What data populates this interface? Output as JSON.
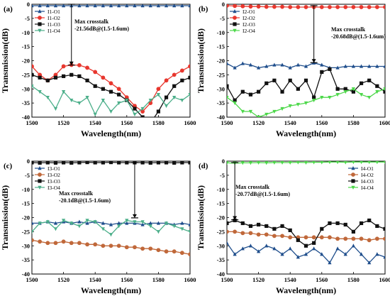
{
  "chart_data": [
    {
      "type": "line",
      "panel_label": "(a)",
      "xlabel": "Wavelength(nm)",
      "ylabel": "Transmission(dB)",
      "xlim": [
        1500,
        1600
      ],
      "ylim": [
        -40,
        0
      ],
      "xticks": [
        1500,
        1520,
        1540,
        1560,
        1580,
        1600
      ],
      "yticks": [
        0,
        -5,
        -10,
        -15,
        -20,
        -25,
        -30,
        -35,
        -40
      ],
      "legend_position": "top-left",
      "annotation": {
        "line1": "Max crosstalk",
        "line2": "-21.56dB@(1.5-1.6um)",
        "x": 1525,
        "y_top": 0,
        "y_bottom": -21.56
      },
      "series": [
        {
          "name": "I1-O1",
          "color": "#1f4e8c",
          "marker": "triangle",
          "x": [
            1500,
            1505,
            1510,
            1515,
            1520,
            1525,
            1530,
            1535,
            1540,
            1545,
            1550,
            1555,
            1560,
            1565,
            1570,
            1575,
            1580,
            1585,
            1590,
            1595,
            1600
          ],
          "y": [
            -0.5,
            -0.5,
            -0.5,
            -0.5,
            -0.5,
            -0.5,
            -0.5,
            -0.5,
            -0.5,
            -0.5,
            -0.5,
            -0.5,
            -0.5,
            -0.5,
            -0.5,
            -0.5,
            -0.5,
            -0.5,
            -0.5,
            -0.5,
            -0.5
          ]
        },
        {
          "name": "I1-O2",
          "color": "#e8372e",
          "marker": "circle",
          "x": [
            1500,
            1505,
            1510,
            1515,
            1520,
            1525,
            1530,
            1535,
            1540,
            1545,
            1550,
            1555,
            1560,
            1565,
            1570,
            1575,
            1580,
            1585,
            1590,
            1595,
            1600
          ],
          "y": [
            -22,
            -25,
            -27,
            -25,
            -22,
            -21.5,
            -21.6,
            -22.5,
            -24,
            -26,
            -28,
            -30,
            -33,
            -36,
            -38,
            -35,
            -30,
            -27,
            -25,
            -23.5,
            -22
          ]
        },
        {
          "name": "I1-O3",
          "color": "#111111",
          "marker": "square",
          "x": [
            1500,
            1505,
            1510,
            1515,
            1520,
            1525,
            1530,
            1535,
            1540,
            1545,
            1550,
            1555,
            1560,
            1565,
            1570,
            1575,
            1580,
            1585,
            1590,
            1595,
            1600
          ],
          "y": [
            -25,
            -26,
            -27,
            -26,
            -25.5,
            -25,
            -25.5,
            -27,
            -29,
            -30,
            -31,
            -32,
            -34,
            -37,
            -40,
            -42,
            -38,
            -33,
            -29,
            -27,
            -26
          ]
        },
        {
          "name": "I1-O4",
          "color": "#4caf8a",
          "marker": "triangle-down",
          "x": [
            1500,
            1505,
            1510,
            1515,
            1520,
            1525,
            1530,
            1535,
            1540,
            1545,
            1550,
            1555,
            1560,
            1565,
            1570,
            1575,
            1580,
            1585,
            1590,
            1595,
            1600
          ],
          "y": [
            -29,
            -31,
            -33,
            -37,
            -31,
            -34,
            -35,
            -33,
            -39,
            -34,
            -38,
            -35,
            -34,
            -39,
            -37,
            -34,
            -32,
            -36,
            -33,
            -34,
            -32
          ]
        }
      ]
    },
    {
      "type": "line",
      "panel_label": "(b)",
      "xlabel": "Wavelength(nm)",
      "ylabel": "Transmission(dB)",
      "xlim": [
        1500,
        1600
      ],
      "ylim": [
        -40,
        0
      ],
      "xticks": [
        1500,
        1520,
        1540,
        1560,
        1580,
        1600
      ],
      "yticks": [
        0,
        -5,
        -10,
        -15,
        -20,
        -25,
        -30,
        -35,
        -40
      ],
      "legend_position": "top-left",
      "annotation": {
        "line1": "Max crosstalk",
        "line2": "-20.68dB@(1.5-1.6um)",
        "x": 1555,
        "y_top": -0.5,
        "y_bottom": -20.68
      },
      "series": [
        {
          "name": "I2-O1",
          "color": "#1f4e8c",
          "marker": "triangle",
          "x": [
            1500,
            1505,
            1510,
            1515,
            1520,
            1525,
            1530,
            1535,
            1540,
            1545,
            1550,
            1555,
            1560,
            1565,
            1570,
            1575,
            1580,
            1585,
            1590,
            1595,
            1600
          ],
          "y": [
            -21,
            -22.5,
            -21,
            -21.5,
            -22.5,
            -22,
            -21.5,
            -21.5,
            -22.5,
            -21.5,
            -22,
            -20.8,
            -21.5,
            -22.5,
            -22.5,
            -22,
            -22,
            -22,
            -22,
            -22,
            -22
          ]
        },
        {
          "name": "I2-O2",
          "color": "#e8372e",
          "marker": "circle",
          "x": [
            1500,
            1505,
            1510,
            1515,
            1520,
            1525,
            1530,
            1535,
            1540,
            1545,
            1550,
            1555,
            1560,
            1565,
            1570,
            1575,
            1580,
            1585,
            1590,
            1595,
            1600
          ],
          "y": [
            -0.5,
            -0.6,
            -0.7,
            -0.8,
            -0.8,
            -0.9,
            -0.9,
            -0.9,
            -1,
            -1,
            -1,
            -1,
            -1,
            -1,
            -1,
            -1,
            -1,
            -1,
            -1,
            -1,
            -1
          ]
        },
        {
          "name": "I2-O3",
          "color": "#111111",
          "marker": "square",
          "x": [
            1500,
            1505,
            1510,
            1515,
            1520,
            1525,
            1530,
            1535,
            1540,
            1545,
            1550,
            1555,
            1560,
            1565,
            1570,
            1575,
            1580,
            1585,
            1590,
            1595,
            1600
          ],
          "y": [
            -29,
            -34,
            -31,
            -32,
            -31,
            -28,
            -27,
            -31,
            -27,
            -30,
            -27,
            -33,
            -24,
            -23,
            -30,
            -30,
            -31,
            -28,
            -27,
            -29,
            -31
          ]
        },
        {
          "name": "I2-O4",
          "color": "#4dd84a",
          "marker": "triangle-down",
          "x": [
            1500,
            1505,
            1510,
            1515,
            1520,
            1525,
            1530,
            1535,
            1540,
            1545,
            1550,
            1555,
            1560,
            1565,
            1570,
            1575,
            1580,
            1585,
            1590,
            1595,
            1600
          ],
          "y": [
            -33,
            -35,
            -38,
            -38,
            -40,
            -39,
            -38,
            -37,
            -36,
            -35.5,
            -35,
            -34,
            -33,
            -33,
            -32,
            -31,
            -30,
            -32,
            -33,
            -31,
            -30
          ]
        }
      ]
    },
    {
      "type": "line",
      "panel_label": "(c)",
      "xlabel": "Wavelength(nm)",
      "ylabel": "Transmission(dB)",
      "xlim": [
        1500,
        1600
      ],
      "ylim": [
        -40,
        0
      ],
      "xticks": [
        1500,
        1520,
        1540,
        1560,
        1580,
        1600
      ],
      "yticks": [
        0,
        -5,
        -10,
        -15,
        -20,
        -25,
        -30,
        -35,
        -40
      ],
      "legend_position": "top-left",
      "annotation": {
        "line1": "Max crosstalk",
        "line2": "-20.1dB@(1.5-1.6um)",
        "x": 1565,
        "y_top": -0.5,
        "y_bottom": -20.1
      },
      "series": [
        {
          "name": "I3-O1",
          "color": "#1f4e8c",
          "marker": "triangle",
          "x": [
            1500,
            1505,
            1510,
            1515,
            1520,
            1525,
            1530,
            1535,
            1540,
            1545,
            1550,
            1555,
            1560,
            1565,
            1570,
            1575,
            1580,
            1585,
            1590,
            1595,
            1600
          ],
          "y": [
            -22,
            -22,
            -21.5,
            -22,
            -21.5,
            -22,
            -21.5,
            -22,
            -21.5,
            -22,
            -22.5,
            -22,
            -22,
            -22,
            -22.5,
            -22,
            -22,
            -22,
            -22.5,
            -22,
            -22.5
          ]
        },
        {
          "name": "I3-O2",
          "color": "#c0683a",
          "marker": "circle",
          "x": [
            1500,
            1505,
            1510,
            1515,
            1520,
            1525,
            1530,
            1535,
            1540,
            1545,
            1550,
            1555,
            1560,
            1565,
            1570,
            1575,
            1580,
            1585,
            1590,
            1595,
            1600
          ],
          "y": [
            -28,
            -28.5,
            -29,
            -29,
            -28.5,
            -29,
            -29,
            -29.5,
            -29.5,
            -30,
            -30,
            -30,
            -30.5,
            -30.5,
            -31,
            -31,
            -31.5,
            -32,
            -32,
            -32.5,
            -33
          ]
        },
        {
          "name": "I3-O3",
          "color": "#111111",
          "marker": "square",
          "x": [
            1500,
            1505,
            1510,
            1515,
            1520,
            1525,
            1530,
            1535,
            1540,
            1545,
            1550,
            1555,
            1560,
            1565,
            1570,
            1575,
            1580,
            1585,
            1590,
            1595,
            1600
          ],
          "y": [
            -0.5,
            -0.6,
            -0.5,
            -0.6,
            -0.5,
            -0.6,
            -0.5,
            -0.4,
            -0.5,
            -0.5,
            -0.4,
            -0.5,
            -0.5,
            -0.5,
            -0.5,
            -0.6,
            -0.5,
            -0.5,
            -0.6,
            -0.5,
            -0.5
          ]
        },
        {
          "name": "I3-O4",
          "color": "#4caf8a",
          "marker": "triangle-down",
          "x": [
            1500,
            1505,
            1510,
            1515,
            1520,
            1525,
            1530,
            1535,
            1540,
            1545,
            1550,
            1555,
            1560,
            1565,
            1570,
            1575,
            1580,
            1585,
            1590,
            1595,
            1600
          ],
          "y": [
            -25,
            -22,
            -21.5,
            -24,
            -21,
            -22,
            -23,
            -21,
            -21.5,
            -24,
            -26,
            -23,
            -21,
            -21.5,
            -21.5,
            -23,
            -25,
            -22,
            -23,
            -24,
            -25
          ]
        }
      ]
    },
    {
      "type": "line",
      "panel_label": "(d)",
      "xlabel": "Wavelength(nm)",
      "ylabel": "Transmission(dB)",
      "xlim": [
        1500,
        1600
      ],
      "ylim": [
        -40,
        0
      ],
      "xticks": [
        1500,
        1520,
        1540,
        1560,
        1580,
        1600
      ],
      "yticks": [
        0,
        -5,
        -10,
        -15,
        -20,
        -25,
        -30,
        -35,
        -40
      ],
      "legend_position": "top-right",
      "annotation": {
        "line1": "Max crosstalk",
        "line2": "-20.77dB@(1.5-1.6um)",
        "x": 1505,
        "y_top": -0.5,
        "y_bottom": -20.77
      },
      "series": [
        {
          "name": "I4-O1",
          "color": "#1f4e8c",
          "marker": "triangle",
          "x": [
            1500,
            1505,
            1510,
            1515,
            1520,
            1525,
            1530,
            1535,
            1540,
            1545,
            1550,
            1555,
            1560,
            1565,
            1570,
            1575,
            1580,
            1585,
            1590,
            1595,
            1600
          ],
          "y": [
            -29,
            -33,
            -31,
            -30,
            -32,
            -30,
            -31,
            -33,
            -31,
            -34,
            -33,
            -31,
            -33,
            -36,
            -31,
            -33,
            -30,
            -33,
            -36,
            -33,
            -34
          ]
        },
        {
          "name": "I4-O2",
          "color": "#c0683a",
          "marker": "circle",
          "x": [
            1500,
            1505,
            1510,
            1515,
            1520,
            1525,
            1530,
            1535,
            1540,
            1545,
            1550,
            1555,
            1560,
            1565,
            1570,
            1575,
            1580,
            1585,
            1590,
            1595,
            1600
          ],
          "y": [
            -25,
            -25,
            -25.5,
            -25.5,
            -26,
            -26,
            -26.5,
            -26.5,
            -27,
            -27,
            -27,
            -27,
            -27,
            -27,
            -27.5,
            -27.5,
            -27.5,
            -27.5,
            -28,
            -27.5,
            -27.5
          ]
        },
        {
          "name": "I4-O3",
          "color": "#111111",
          "marker": "square",
          "x": [
            1500,
            1505,
            1510,
            1515,
            1520,
            1525,
            1530,
            1535,
            1540,
            1545,
            1550,
            1555,
            1560,
            1565,
            1570,
            1575,
            1580,
            1585,
            1590,
            1595,
            1600
          ],
          "y": [
            -22,
            -21,
            -22,
            -23,
            -22.5,
            -23,
            -24,
            -23,
            -24.5,
            -28,
            -30,
            -29,
            -24,
            -22,
            -22,
            -22.5,
            -25,
            -22,
            -21,
            -23,
            -24
          ]
        },
        {
          "name": "I4-O4",
          "color": "#4dd84a",
          "marker": "triangle-down",
          "x": [
            1500,
            1505,
            1510,
            1515,
            1520,
            1525,
            1530,
            1535,
            1540,
            1545,
            1550,
            1555,
            1560,
            1565,
            1570,
            1575,
            1580,
            1585,
            1590,
            1595,
            1600
          ],
          "y": [
            -0.6,
            -0.7,
            -0.6,
            -0.6,
            -0.5,
            -0.6,
            -0.5,
            -0.5,
            -0.5,
            -0.4,
            -0.5,
            -0.4,
            -0.4,
            -0.3,
            -0.3,
            -0.4,
            -0.3,
            -0.3,
            -0.3,
            -0.3,
            -0.3
          ]
        }
      ]
    }
  ]
}
